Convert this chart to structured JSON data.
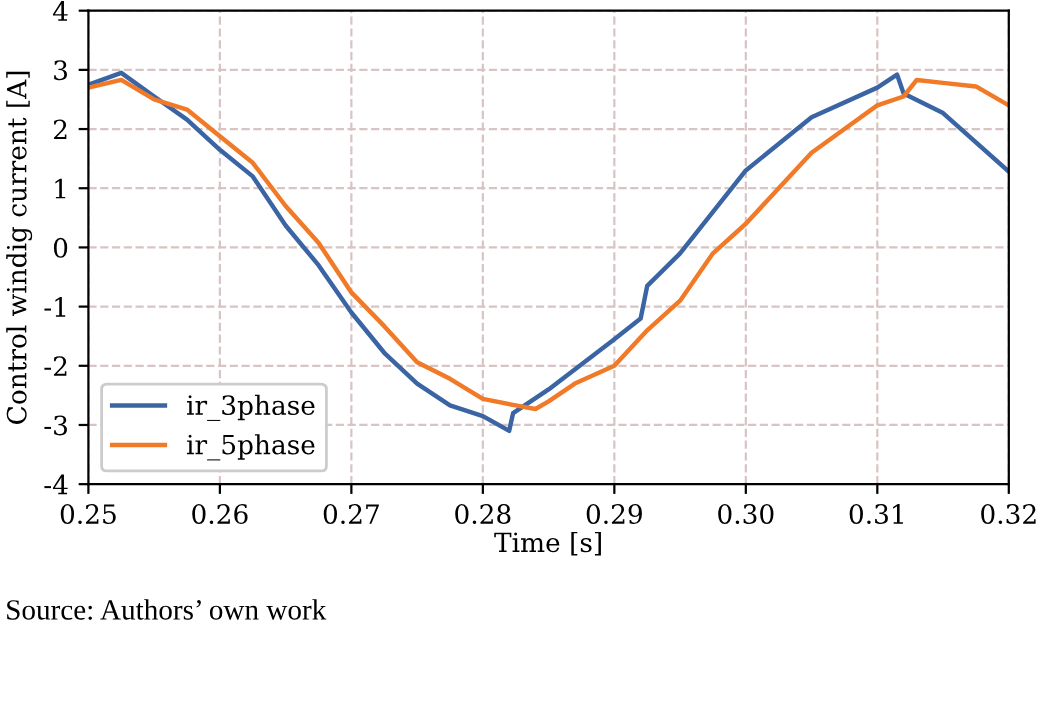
{
  "chart_data": {
    "type": "line",
    "xlabel": "Time [s]",
    "ylabel": "Control windig current [A]",
    "xlim": [
      0.25,
      0.32
    ],
    "ylim": [
      -4,
      4
    ],
    "xticks": [
      {
        "value": 0.25,
        "label": "0.25"
      },
      {
        "value": 0.26,
        "label": "0.26"
      },
      {
        "value": 0.27,
        "label": "0.27"
      },
      {
        "value": 0.28,
        "label": "0.28"
      },
      {
        "value": 0.29,
        "label": "0.29"
      },
      {
        "value": 0.3,
        "label": "0.30"
      },
      {
        "value": 0.31,
        "label": "0.31"
      },
      {
        "value": 0.32,
        "label": "0.32"
      }
    ],
    "yticks": [
      -4,
      -3,
      -2,
      -1,
      0,
      1,
      2,
      3,
      4
    ],
    "grid": true,
    "legend": "bottom left",
    "line_style": "solid",
    "series": [
      {
        "name": "ir_3phase",
        "color": "#3b64a4",
        "x": [
          0.25,
          0.2525,
          0.255,
          0.2575,
          0.26,
          0.2625,
          0.265,
          0.2675,
          0.27,
          0.2725,
          0.275,
          0.2775,
          0.28,
          0.282,
          0.2823,
          0.285,
          0.29,
          0.292,
          0.2925,
          0.295,
          0.3,
          0.305,
          0.31,
          0.3115,
          0.312,
          0.315,
          0.32
        ],
        "values": [
          2.75,
          2.95,
          2.55,
          2.16,
          1.65,
          1.2,
          0.37,
          -0.3,
          -1.1,
          -1.78,
          -2.3,
          -2.67,
          -2.85,
          -3.1,
          -2.8,
          -2.4,
          -1.55,
          -1.2,
          -0.65,
          -0.1,
          1.3,
          2.2,
          2.7,
          2.92,
          2.6,
          2.27,
          1.28
        ]
      },
      {
        "name": "ir_5phase",
        "color": "#f07a28",
        "x": [
          0.25,
          0.2525,
          0.255,
          0.2575,
          0.26,
          0.2625,
          0.265,
          0.2675,
          0.27,
          0.2725,
          0.275,
          0.2775,
          0.28,
          0.2825,
          0.284,
          0.285,
          0.287,
          0.29,
          0.2925,
          0.295,
          0.2975,
          0.3,
          0.3025,
          0.305,
          0.3075,
          0.31,
          0.312,
          0.313,
          0.315,
          0.3175,
          0.32
        ],
        "values": [
          2.7,
          2.83,
          2.5,
          2.33,
          1.88,
          1.43,
          0.7,
          0.08,
          -0.76,
          -1.33,
          -1.94,
          -2.22,
          -2.56,
          -2.67,
          -2.73,
          -2.6,
          -2.3,
          -2.0,
          -1.4,
          -0.9,
          -0.1,
          0.4,
          1.0,
          1.6,
          2.0,
          2.4,
          2.55,
          2.83,
          2.78,
          2.72,
          2.4
        ]
      }
    ],
    "annotations": [
      "Source: Authors’ own work"
    ]
  }
}
